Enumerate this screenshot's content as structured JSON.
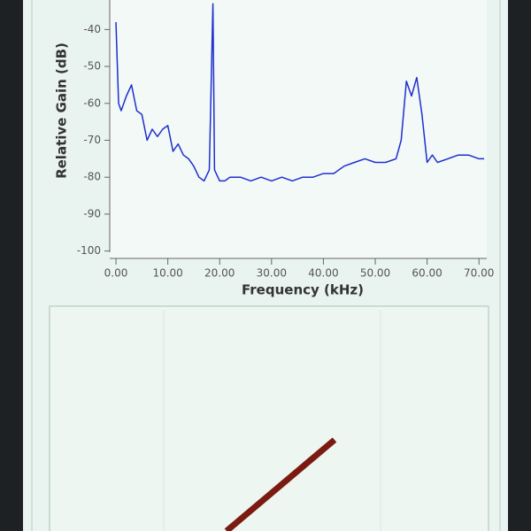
{
  "chart_data": {
    "type": "line",
    "xlabel": "Frequency (kHz)",
    "ylabel": "Relative Gain (dB)",
    "x": [
      0,
      0.5,
      1,
      2,
      3,
      4,
      5,
      6,
      7,
      8,
      9,
      10,
      11,
      12,
      13,
      14,
      15,
      16,
      17,
      18,
      18.7,
      19,
      20,
      21,
      22,
      24,
      26,
      28,
      30,
      32,
      34,
      36,
      38,
      40,
      42,
      44,
      46,
      48,
      50,
      52,
      54,
      55,
      56,
      57,
      58,
      59,
      60,
      61,
      62,
      64,
      66,
      68,
      70,
      71
    ],
    "series": [
      {
        "color": "#1f2fd0",
        "values": [
          -38,
          -60,
          -62,
          -58,
          -55,
          -62,
          -63,
          -70,
          -67,
          -69,
          -67,
          -66,
          -73,
          -71,
          -74,
          -75,
          -77,
          -80,
          -81,
          -78,
          -33,
          -78,
          -81,
          -81,
          -80,
          -80,
          -81,
          -80,
          -81,
          -80,
          -81,
          -80,
          -80,
          -79,
          -79,
          -77,
          -76,
          -75,
          -76,
          -76,
          -75,
          -70,
          -54,
          -58,
          -53,
          -63,
          -76,
          -74,
          -76,
          -75,
          -74,
          -74,
          -75,
          -75
        ]
      }
    ],
    "xlim": [
      -1.2,
      71.5
    ],
    "ylim": [
      -102,
      -32
    ],
    "xticks": [
      {
        "value": 0,
        "label": "0.00"
      },
      {
        "value": 10,
        "label": "10.00"
      },
      {
        "value": 20,
        "label": "20.00"
      },
      {
        "value": 30,
        "label": "30.00"
      },
      {
        "value": 40,
        "label": "40.00"
      },
      {
        "value": 50,
        "label": "50.00"
      },
      {
        "value": 60,
        "label": "60.00"
      },
      {
        "value": 70,
        "label": "70.00"
      }
    ],
    "yticks": [
      -40,
      -50,
      -60,
      -70,
      -80,
      -90,
      -100
    ]
  }
}
